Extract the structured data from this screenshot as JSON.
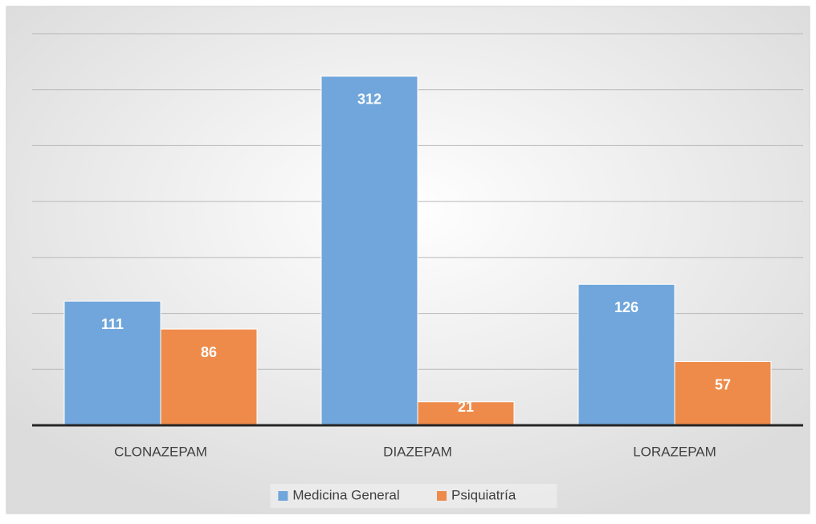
{
  "chart_data": {
    "type": "bar",
    "categories": [
      "CLONAZEPAM",
      "DIAZEPAM",
      "LORAZEPAM"
    ],
    "series": [
      {
        "name": "Medicina General",
        "color": "#70a6db",
        "values": [
          111,
          312,
          126
        ]
      },
      {
        "name": "Psiquiatría",
        "color": "#ee8b4a",
        "values": [
          86,
          21,
          57
        ]
      }
    ],
    "ylim": [
      0,
      350
    ],
    "yticks": [
      0,
      50,
      100,
      150,
      200,
      250,
      300,
      350
    ],
    "grid": true,
    "legend": "bottom"
  }
}
